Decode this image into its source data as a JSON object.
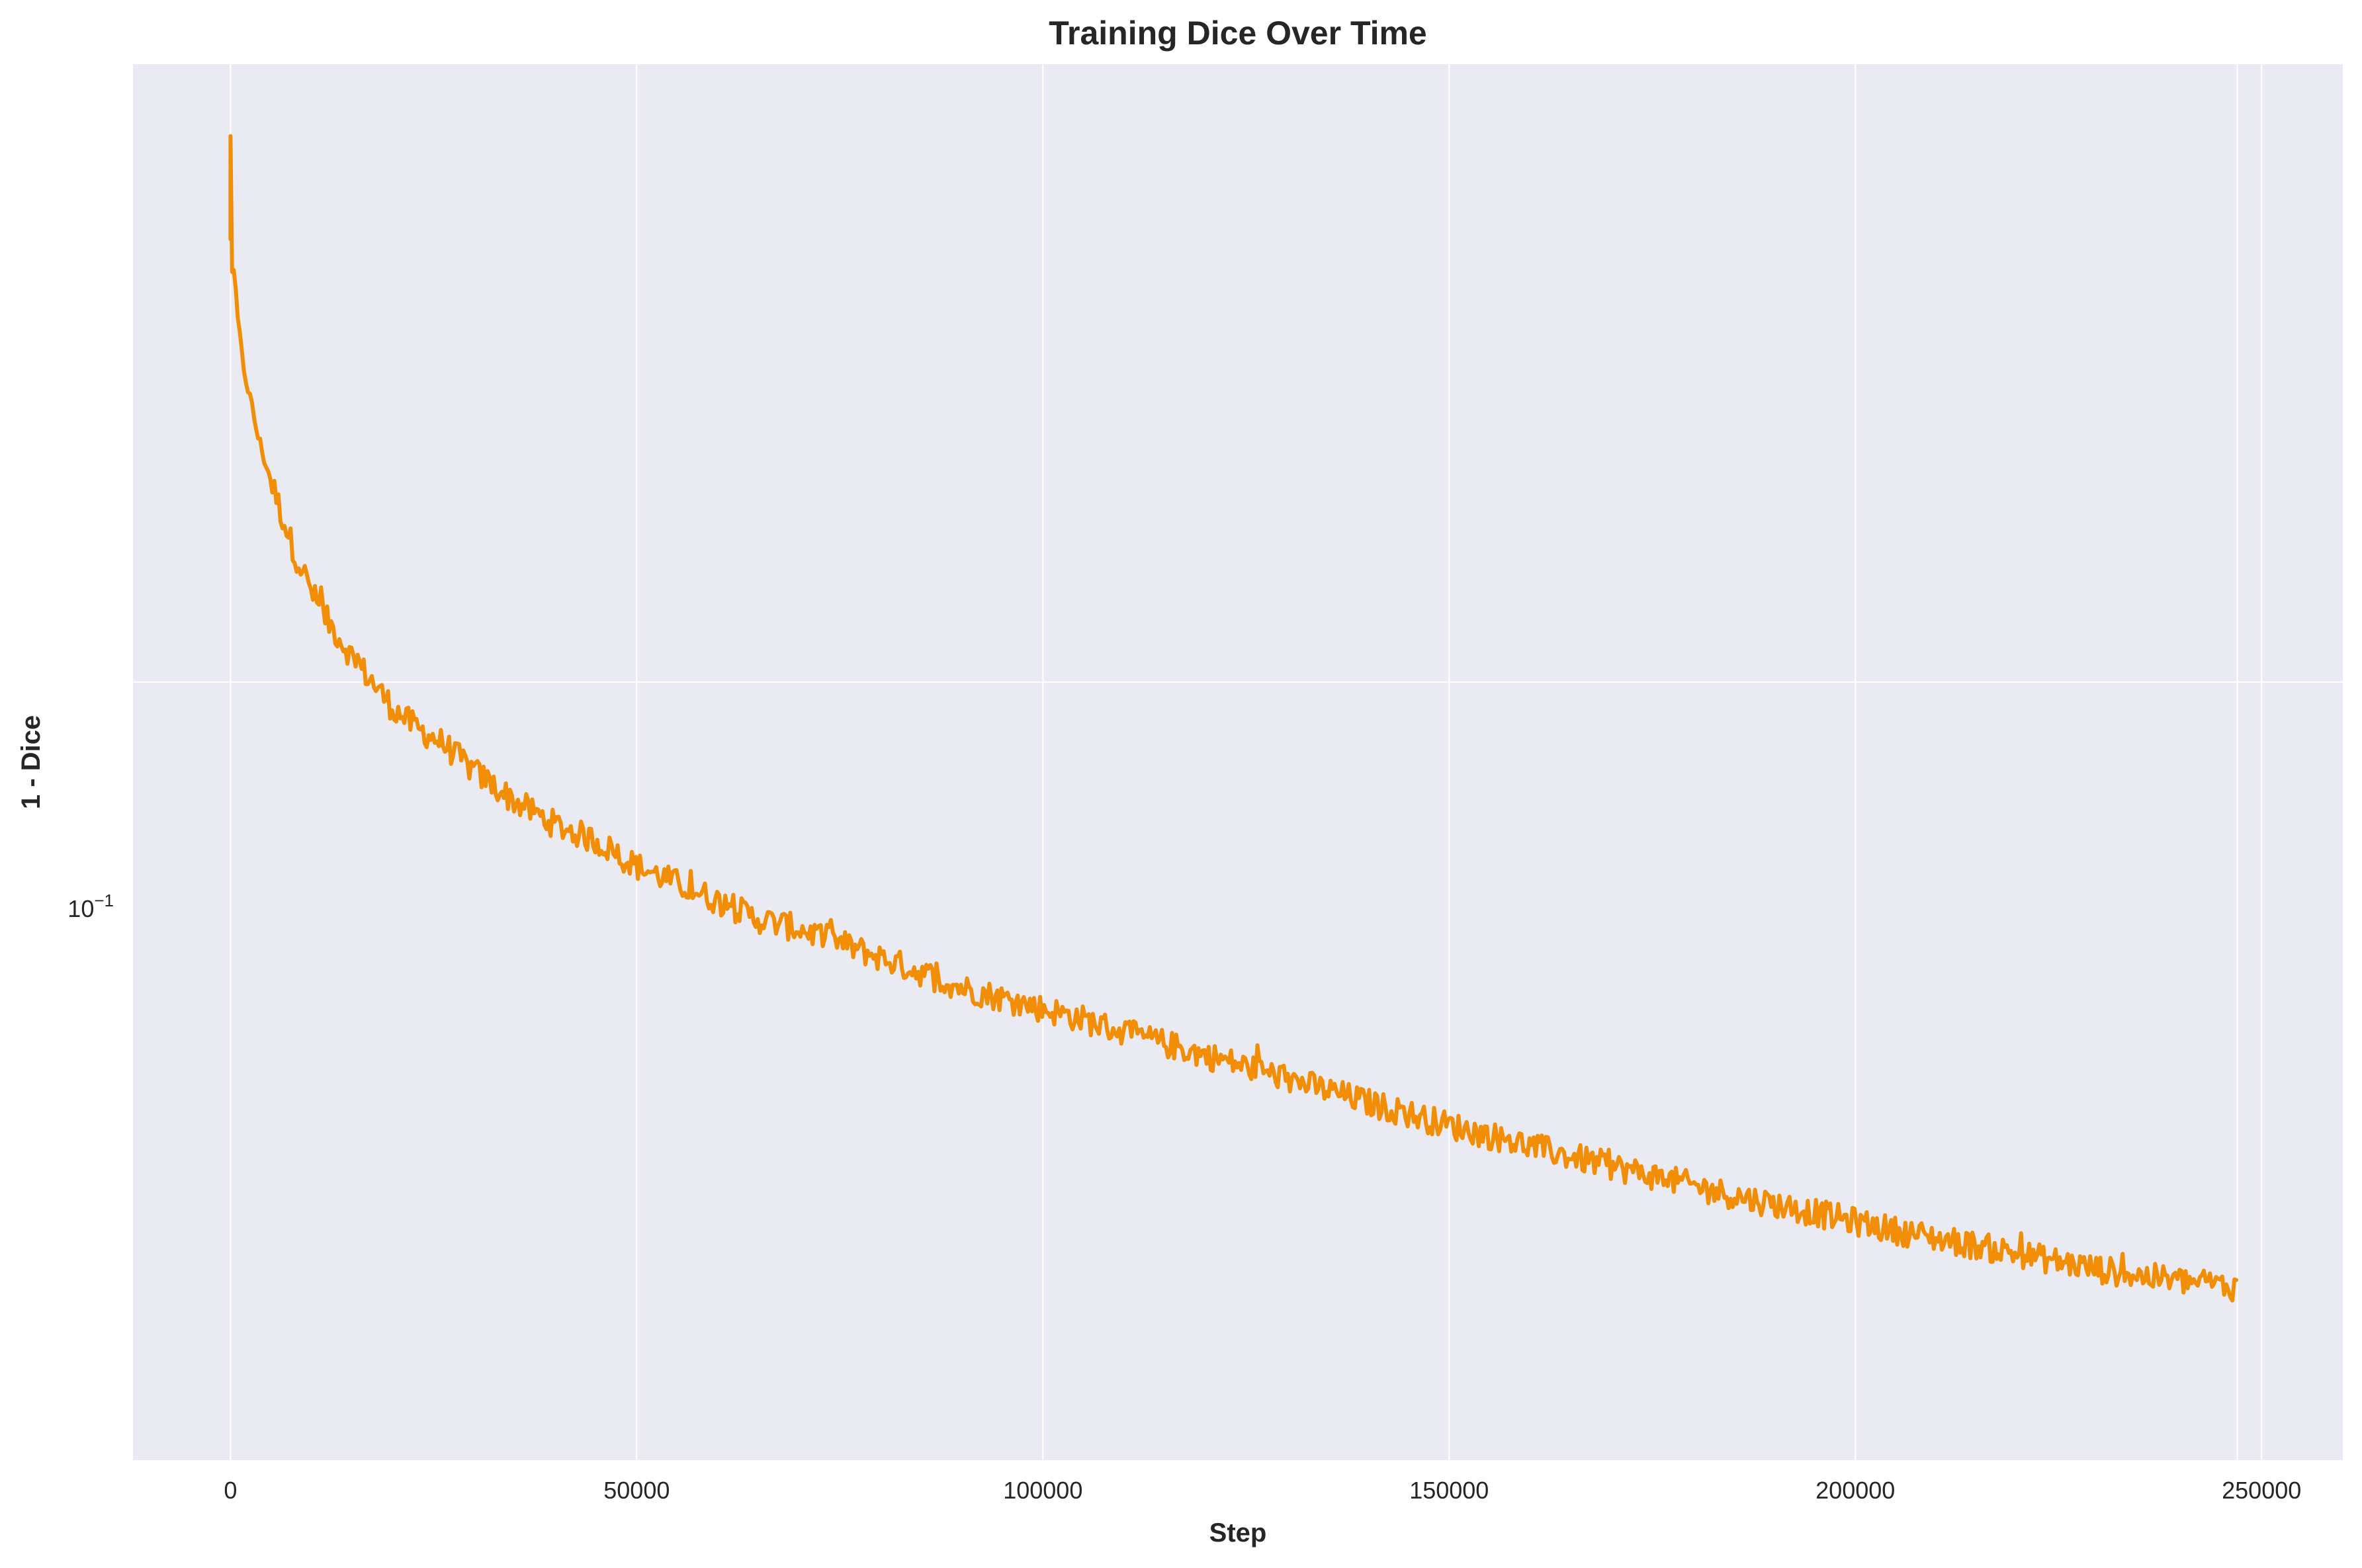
{
  "chart_data": {
    "type": "line",
    "title": "Training Dice Over Time",
    "xlabel": "Step",
    "ylabel": "1 - Dice",
    "yscale": "log",
    "xlim": [
      -12000,
      260000
    ],
    "ylim": [
      0.0296,
      0.263
    ],
    "grid": true,
    "colors": {
      "background": "#eaeaf2",
      "grid": "#ffffff",
      "series": "#f28e05",
      "text": "#262626"
    },
    "x_ticks": [
      "0",
      "50000",
      "100000",
      "150000",
      "200000",
      "250000"
    ],
    "x_tick_values": [
      0,
      50000,
      100000,
      150000,
      200000,
      250000
    ],
    "y_tick": {
      "base": "10",
      "exponent": "−1",
      "value": 0.1
    },
    "extra_grid_x": [
      247000
    ],
    "series": [
      {
        "values_note_omitted": true,
        "x": [
          0,
          300,
          800,
          1500,
          2500,
          3500,
          5000,
          6500,
          8000,
          9500,
          11000,
          13000,
          15000,
          17500,
          20000,
          23000,
          26000,
          30000,
          35000,
          40000,
          45000,
          50000,
          55000,
          60000,
          65000,
          70000,
          75000,
          80000,
          85000,
          90000,
          95000,
          100000,
          105000,
          110000,
          115000,
          120000,
          125000,
          130000,
          135000,
          140000,
          145000,
          150000,
          155000,
          160000,
          165000,
          170000,
          175000,
          180000,
          185000,
          190000,
          195000,
          200000,
          205000,
          210000,
          215000,
          220000,
          225000,
          230000,
          235000,
          240000,
          245000,
          247000
        ],
        "y": [
          0.235,
          0.195,
          0.178,
          0.165,
          0.155,
          0.146,
          0.137,
          0.129,
          0.122,
          0.117,
          0.112,
          0.108,
          0.104,
          0.1,
          0.096,
          0.093,
          0.091,
          0.087,
          0.083,
          0.08,
          0.078,
          0.075,
          0.073,
          0.071,
          0.069,
          0.068,
          0.0665,
          0.065,
          0.0635,
          0.062,
          0.061,
          0.06,
          0.059,
          0.0578,
          0.0568,
          0.0558,
          0.0548,
          0.0538,
          0.0528,
          0.0518,
          0.0509,
          0.05,
          0.0492,
          0.0484,
          0.0476,
          0.0469,
          0.0462,
          0.0455,
          0.0448,
          0.0442,
          0.0436,
          0.043,
          0.0424,
          0.0419,
          0.0414,
          0.0409,
          0.0404,
          0.0399,
          0.0395,
          0.0392,
          0.0389,
          0.0388
        ]
      }
    ]
  }
}
